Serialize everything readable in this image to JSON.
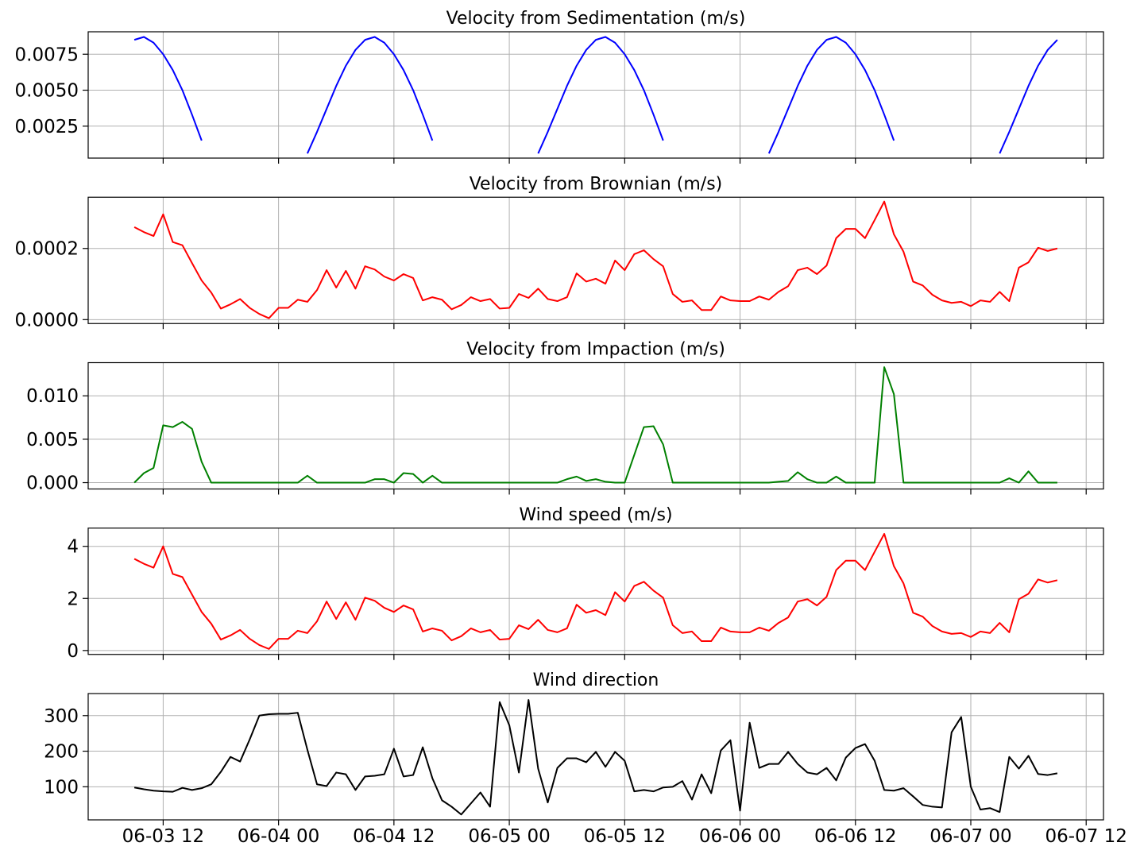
{
  "chart_data": [
    {
      "type": "line",
      "title": "Velocity from Sedimentation (m/s)",
      "color": "#0000ff",
      "grid": true,
      "x": [
        "06-03 09",
        "06-03 10",
        "06-03 11",
        "06-03 12",
        "06-03 13",
        "06-03 14",
        "06-03 15",
        "06-03 16",
        "06-03 17",
        "06-03 18",
        "06-03 19",
        "06-03 20",
        "06-03 21",
        "06-03 22",
        "06-03 23",
        "06-04 00",
        "06-04 01",
        "06-04 02",
        "06-04 03",
        "06-04 04",
        "06-04 05",
        "06-04 06",
        "06-04 07",
        "06-04 08",
        "06-04 09",
        "06-04 10",
        "06-04 11",
        "06-04 12",
        "06-04 13",
        "06-04 14",
        "06-04 15",
        "06-04 16",
        "06-04 17",
        "06-04 18",
        "06-04 19",
        "06-04 20",
        "06-04 21",
        "06-04 22",
        "06-04 23",
        "06-05 00",
        "06-05 01",
        "06-05 02",
        "06-05 03",
        "06-05 04",
        "06-05 05",
        "06-05 06",
        "06-05 07",
        "06-05 08",
        "06-05 09",
        "06-05 10",
        "06-05 11",
        "06-05 12",
        "06-05 13",
        "06-05 14",
        "06-05 15",
        "06-05 16",
        "06-05 17",
        "06-05 18",
        "06-05 19",
        "06-05 20",
        "06-05 21",
        "06-05 22",
        "06-05 23",
        "06-06 00",
        "06-06 01",
        "06-06 02",
        "06-06 03",
        "06-06 04",
        "06-06 05",
        "06-06 06",
        "06-06 07",
        "06-06 08",
        "06-06 09",
        "06-06 10",
        "06-06 11",
        "06-06 12",
        "06-06 13",
        "06-06 14",
        "06-06 15",
        "06-06 16",
        "06-06 17",
        "06-06 18",
        "06-06 19",
        "06-06 20",
        "06-06 21",
        "06-06 22",
        "06-06 23",
        "06-07 00",
        "06-07 01",
        "06-07 02",
        "06-07 03",
        "06-07 04",
        "06-07 05",
        "06-07 06",
        "06-07 07",
        "06-07 08",
        "06-07 09"
      ],
      "values": [
        0.0085,
        0.0087,
        0.0083,
        0.0075,
        0.0064,
        0.005,
        0.0033,
        0.0015,
        null,
        null,
        null,
        null,
        null,
        null,
        null,
        null,
        null,
        null,
        0.0006,
        0.0021,
        0.0037,
        0.0053,
        0.0067,
        0.0078,
        0.0085,
        0.0087,
        0.0083,
        0.0075,
        0.0064,
        0.005,
        0.0033,
        0.0015,
        null,
        null,
        null,
        null,
        null,
        null,
        null,
        null,
        null,
        null,
        0.0006,
        0.0021,
        0.0037,
        0.0053,
        0.0067,
        0.0078,
        0.0085,
        0.0087,
        0.0083,
        0.0075,
        0.0064,
        0.005,
        0.0033,
        0.0015,
        null,
        null,
        null,
        null,
        null,
        null,
        null,
        null,
        null,
        null,
        0.0006,
        0.0021,
        0.0037,
        0.0053,
        0.0067,
        0.0078,
        0.0085,
        0.0087,
        0.0083,
        0.0075,
        0.0064,
        0.005,
        0.0033,
        0.0015,
        null,
        null,
        null,
        null,
        null,
        null,
        null,
        null,
        null,
        null,
        0.0006,
        0.0021,
        0.0037,
        0.0053,
        0.0067,
        0.0078,
        0.0085
      ],
      "xlim": [
        "06-03 04:12",
        "06-07 13:48"
      ],
      "xticks": [
        "06-03 12",
        "06-04 00",
        "06-04 12",
        "06-05 00",
        "06-05 12",
        "06-06 00",
        "06-06 12",
        "06-07 00",
        "06-07 12"
      ],
      "ylim": [
        0.00028,
        0.00906
      ],
      "yticks": [
        0.0025,
        {
          "value": 0.005,
          "label": "0.0050"
        },
        0.0075
      ]
    },
    {
      "type": "line",
      "title": "Velocity from Brownian (m/s)",
      "color": "#ff0000",
      "grid": true,
      "x": [
        "06-03 09",
        "06-03 10",
        "06-03 11",
        "06-03 12",
        "06-03 13",
        "06-03 14",
        "06-03 15",
        "06-03 16",
        "06-03 17",
        "06-03 18",
        "06-03 19",
        "06-03 20",
        "06-03 21",
        "06-03 22",
        "06-03 23",
        "06-04 00",
        "06-04 01",
        "06-04 02",
        "06-04 03",
        "06-04 04",
        "06-04 05",
        "06-04 06",
        "06-04 07",
        "06-04 08",
        "06-04 09",
        "06-04 10",
        "06-04 11",
        "06-04 12",
        "06-04 13",
        "06-04 14",
        "06-04 15",
        "06-04 16",
        "06-04 17",
        "06-04 18",
        "06-04 19",
        "06-04 20",
        "06-04 21",
        "06-04 22",
        "06-04 23",
        "06-05 00",
        "06-05 01",
        "06-05 02",
        "06-05 03",
        "06-05 04",
        "06-05 05",
        "06-05 06",
        "06-05 07",
        "06-05 08",
        "06-05 09",
        "06-05 10",
        "06-05 11",
        "06-05 12",
        "06-05 13",
        "06-05 14",
        "06-05 15",
        "06-05 16",
        "06-05 17",
        "06-05 18",
        "06-05 19",
        "06-05 20",
        "06-05 21",
        "06-05 22",
        "06-05 23",
        "06-06 00",
        "06-06 01",
        "06-06 02",
        "06-06 03",
        "06-06 04",
        "06-06 05",
        "06-06 06",
        "06-06 07",
        "06-06 08",
        "06-06 09",
        "06-06 10",
        "06-06 11",
        "06-06 12",
        "06-06 13",
        "06-06 14",
        "06-06 15",
        "06-06 16",
        "06-06 17",
        "06-06 18",
        "06-06 19",
        "06-06 20",
        "06-06 21",
        "06-06 22",
        "06-06 23",
        "06-07 00",
        "06-07 01",
        "06-07 02",
        "06-07 03",
        "06-07 04",
        "06-07 05",
        "06-07 06",
        "06-07 07",
        "06-07 08",
        "06-07 09"
      ],
      "values": [
        0.00026,
        0.000246,
        0.000235,
        0.000296,
        0.000218,
        0.000209,
        0.000159,
        0.00011,
        7.6e-05,
        3.1e-05,
        4.3e-05,
        5.8e-05,
        3.3e-05,
        1.6e-05,
        4e-06,
        3.3e-05,
        3.3e-05,
        5.6e-05,
        5e-05,
        8.3e-05,
        0.000139,
        9e-05,
        0.000137,
        8.7e-05,
        0.00015,
        0.000141,
        0.000121,
        0.00011,
        0.000128,
        0.000117,
        5.4e-05,
        6.3e-05,
        5.6e-05,
        2.9e-05,
        4.1e-05,
        6.3e-05,
        5.2e-05,
        5.8e-05,
        3.1e-05,
        3.3e-05,
        7.2e-05,
        6.1e-05,
        8.7e-05,
        5.8e-05,
        5.2e-05,
        6.3e-05,
        0.00013,
        0.000107,
        0.000115,
        0.000101,
        0.000166,
        0.000139,
        0.000184,
        0.000195,
        0.00017,
        0.00015,
        7.2e-05,
        5e-05,
        5.4e-05,
        2.7e-05,
        2.7e-05,
        6.5e-05,
        5.4e-05,
        5.2e-05,
        5.2e-05,
        6.5e-05,
        5.6e-05,
        7.8e-05,
        9.4e-05,
        0.000139,
        0.000146,
        0.000128,
        0.000152,
        0.000229,
        0.000255,
        0.000255,
        0.000229,
        0.00028,
        0.000332,
        0.00024,
        0.000191,
        0.000107,
        9.6e-05,
        7e-05,
        5.4e-05,
        4.7e-05,
        5e-05,
        3.8e-05,
        5.4e-05,
        5e-05,
        7.8e-05,
        5.2e-05,
        0.000146,
        0.000161,
        0.000202,
        0.000193,
        0.0002
      ],
      "xlim": [
        "06-03 04:12",
        "06-07 13:48"
      ],
      "xticks": [
        "06-03 12",
        "06-04 00",
        "06-04 12",
        "06-05 00",
        "06-05 12",
        "06-06 00",
        "06-06 12",
        "06-07 00",
        "06-07 12"
      ],
      "ylim": [
        -1.1e-05,
        0.000344
      ],
      "yticks": [
        {
          "value": 0,
          "label": "0.0000"
        },
        0.0002
      ]
    },
    {
      "type": "line",
      "title": "Velocity from Impaction (m/s)",
      "color": "#008000",
      "grid": true,
      "x": [
        "06-03 09",
        "06-03 10",
        "06-03 11",
        "06-03 12",
        "06-03 13",
        "06-03 14",
        "06-03 15",
        "06-03 16",
        "06-03 17",
        "06-03 18",
        "06-03 19",
        "06-03 20",
        "06-03 21",
        "06-03 22",
        "06-03 23",
        "06-04 00",
        "06-04 01",
        "06-04 02",
        "06-04 03",
        "06-04 04",
        "06-04 05",
        "06-04 06",
        "06-04 07",
        "06-04 08",
        "06-04 09",
        "06-04 10",
        "06-04 11",
        "06-04 12",
        "06-04 13",
        "06-04 14",
        "06-04 15",
        "06-04 16",
        "06-04 17",
        "06-04 18",
        "06-04 19",
        "06-04 20",
        "06-04 21",
        "06-04 22",
        "06-04 23",
        "06-05 00",
        "06-05 01",
        "06-05 02",
        "06-05 03",
        "06-05 04",
        "06-05 05",
        "06-05 06",
        "06-05 07",
        "06-05 08",
        "06-05 09",
        "06-05 10",
        "06-05 11",
        "06-05 12",
        "06-05 13",
        "06-05 14",
        "06-05 15",
        "06-05 16",
        "06-05 17",
        "06-05 18",
        "06-05 19",
        "06-05 20",
        "06-05 21",
        "06-05 22",
        "06-05 23",
        "06-06 00",
        "06-06 01",
        "06-06 02",
        "06-06 03",
        "06-06 04",
        "06-06 05",
        "06-06 06",
        "06-06 07",
        "06-06 08",
        "06-06 09",
        "06-06 10",
        "06-06 11",
        "06-06 12",
        "06-06 13",
        "06-06 14",
        "06-06 15",
        "06-06 16",
        "06-06 17",
        "06-06 18",
        "06-06 19",
        "06-06 20",
        "06-06 21",
        "06-06 22",
        "06-06 23",
        "06-07 00",
        "06-07 01",
        "06-07 02",
        "06-07 03",
        "06-07 04",
        "06-07 05",
        "06-07 06",
        "06-07 07",
        "06-07 08",
        "06-07 09"
      ],
      "values": [
        0,
        0.0011,
        0.0017,
        0.0066,
        0.0064,
        0.007,
        0.0062,
        0.0024,
        0,
        0,
        0,
        0,
        0,
        0,
        0,
        0,
        0,
        0,
        0.0008,
        0,
        0,
        0,
        0,
        0,
        0,
        0.0004,
        0.0004,
        0,
        0.0011,
        0.001,
        0,
        0.0008,
        0,
        0,
        0,
        0,
        0,
        0,
        0,
        0,
        0,
        0,
        0,
        0,
        0,
        0.0004,
        0.0007,
        0.0002,
        0.0004,
        0.0001,
        0,
        0,
        0.0032,
        0.0064,
        0.0065,
        0.0044,
        0,
        0,
        0,
        0,
        0,
        0,
        0,
        0,
        0,
        0,
        0,
        0.0001,
        0.0002,
        0.0012,
        0.0004,
        0,
        0,
        0.0007,
        0,
        0,
        0,
        0,
        0.0133,
        0.0102,
        0,
        0,
        0,
        0,
        0,
        0,
        0,
        0,
        0,
        0,
        0,
        0.0005,
        0,
        0.0013,
        0,
        0,
        0
      ],
      "xlim": [
        "06-03 04:12",
        "06-07 13:48"
      ],
      "xticks": [
        "06-03 12",
        "06-04 00",
        "06-04 12",
        "06-05 00",
        "06-05 12",
        "06-06 00",
        "06-06 12",
        "06-07 00",
        "06-07 12"
      ],
      "ylim": [
        -0.00073,
        0.01382
      ],
      "yticks": [
        {
          "value": 0,
          "label": "0.000"
        },
        {
          "value": 0.005,
          "label": "0.005"
        },
        {
          "value": 0.01,
          "label": "0.010"
        }
      ]
    },
    {
      "type": "line",
      "title": "Wind speed (m/s)",
      "color": "#ff0000",
      "grid": true,
      "x": [
        "06-03 09",
        "06-03 10",
        "06-03 11",
        "06-03 12",
        "06-03 13",
        "06-03 14",
        "06-03 15",
        "06-03 16",
        "06-03 17",
        "06-03 18",
        "06-03 19",
        "06-03 20",
        "06-03 21",
        "06-03 22",
        "06-03 23",
        "06-04 00",
        "06-04 01",
        "06-04 02",
        "06-04 03",
        "06-04 04",
        "06-04 05",
        "06-04 06",
        "06-04 07",
        "06-04 08",
        "06-04 09",
        "06-04 10",
        "06-04 11",
        "06-04 12",
        "06-04 13",
        "06-04 14",
        "06-04 15",
        "06-04 16",
        "06-04 17",
        "06-04 18",
        "06-04 19",
        "06-04 20",
        "06-04 21",
        "06-04 22",
        "06-04 23",
        "06-05 00",
        "06-05 01",
        "06-05 02",
        "06-05 03",
        "06-05 04",
        "06-05 05",
        "06-05 06",
        "06-05 07",
        "06-05 08",
        "06-05 09",
        "06-05 10",
        "06-05 11",
        "06-05 12",
        "06-05 13",
        "06-05 14",
        "06-05 15",
        "06-05 16",
        "06-05 17",
        "06-05 18",
        "06-05 19",
        "06-05 20",
        "06-05 21",
        "06-05 22",
        "06-05 23",
        "06-06 00",
        "06-06 01",
        "06-06 02",
        "06-06 03",
        "06-06 04",
        "06-06 05",
        "06-06 06",
        "06-06 07",
        "06-06 08",
        "06-06 09",
        "06-06 10",
        "06-06 11",
        "06-06 12",
        "06-06 13",
        "06-06 14",
        "06-06 15",
        "06-06 16",
        "06-06 17",
        "06-06 18",
        "06-06 19",
        "06-06 20",
        "06-06 21",
        "06-06 22",
        "06-06 23",
        "06-07 00",
        "06-07 01",
        "06-07 02",
        "06-07 03",
        "06-07 04",
        "06-07 05",
        "06-07 06",
        "06-07 07",
        "06-07 08",
        "06-07 09"
      ],
      "values": [
        3.52,
        3.33,
        3.18,
        4.0,
        2.94,
        2.82,
        2.15,
        1.48,
        1.03,
        0.42,
        0.58,
        0.79,
        0.45,
        0.21,
        0.06,
        0.45,
        0.45,
        0.76,
        0.67,
        1.12,
        1.88,
        1.21,
        1.85,
        1.18,
        2.03,
        1.91,
        1.64,
        1.48,
        1.73,
        1.58,
        0.73,
        0.85,
        0.76,
        0.39,
        0.55,
        0.85,
        0.7,
        0.79,
        0.42,
        0.45,
        0.97,
        0.82,
        1.18,
        0.79,
        0.7,
        0.85,
        1.76,
        1.45,
        1.55,
        1.36,
        2.24,
        1.88,
        2.48,
        2.64,
        2.3,
        2.03,
        0.97,
        0.67,
        0.73,
        0.36,
        0.36,
        0.88,
        0.73,
        0.7,
        0.7,
        0.88,
        0.76,
        1.06,
        1.27,
        1.88,
        1.97,
        1.73,
        2.06,
        3.09,
        3.45,
        3.45,
        3.09,
        3.79,
        4.48,
        3.24,
        2.58,
        1.45,
        1.3,
        0.94,
        0.73,
        0.64,
        0.67,
        0.52,
        0.73,
        0.67,
        1.06,
        0.7,
        1.97,
        2.18,
        2.73,
        2.61,
        2.7
      ],
      "xlim": [
        "06-03 04:12",
        "06-07 13:48"
      ],
      "xticks": [
        "06-03 12",
        "06-04 00",
        "06-04 12",
        "06-05 00",
        "06-05 12",
        "06-06 00",
        "06-06 12",
        "06-07 00",
        "06-07 12"
      ],
      "ylim": [
        -0.15,
        4.7
      ],
      "yticks": [
        0,
        2,
        4
      ]
    },
    {
      "type": "line",
      "title": "Wind direction",
      "color": "#000000",
      "grid": true,
      "x": [
        "06-03 09",
        "06-03 10",
        "06-03 11",
        "06-03 12",
        "06-03 13",
        "06-03 14",
        "06-03 15",
        "06-03 16",
        "06-03 17",
        "06-03 18",
        "06-03 19",
        "06-03 20",
        "06-03 21",
        "06-03 22",
        "06-03 23",
        "06-04 00",
        "06-04 01",
        "06-04 02",
        "06-04 03",
        "06-04 04",
        "06-04 05",
        "06-04 06",
        "06-04 07",
        "06-04 08",
        "06-04 09",
        "06-04 10",
        "06-04 11",
        "06-04 12",
        "06-04 13",
        "06-04 14",
        "06-04 15",
        "06-04 16",
        "06-04 17",
        "06-04 18",
        "06-04 19",
        "06-04 20",
        "06-04 21",
        "06-04 22",
        "06-04 23",
        "06-05 00",
        "06-05 01",
        "06-05 02",
        "06-05 03",
        "06-05 04",
        "06-05 05",
        "06-05 06",
        "06-05 07",
        "06-05 08",
        "06-05 09",
        "06-05 10",
        "06-05 11",
        "06-05 12",
        "06-05 13",
        "06-05 14",
        "06-05 15",
        "06-05 16",
        "06-05 17",
        "06-05 18",
        "06-05 19",
        "06-05 20",
        "06-05 21",
        "06-05 22",
        "06-05 23",
        "06-06 00",
        "06-06 01",
        "06-06 02",
        "06-06 03",
        "06-06 04",
        "06-06 05",
        "06-06 06",
        "06-06 07",
        "06-06 08",
        "06-06 09",
        "06-06 10",
        "06-06 11",
        "06-06 12",
        "06-06 13",
        "06-06 14",
        "06-06 15",
        "06-06 16",
        "06-06 17",
        "06-06 18",
        "06-06 19",
        "06-06 20",
        "06-06 21",
        "06-06 22",
        "06-06 23",
        "06-07 00",
        "06-07 01",
        "06-07 02",
        "06-07 03",
        "06-07 04",
        "06-07 05",
        "06-07 06",
        "06-07 07",
        "06-07 08",
        "06-07 09"
      ],
      "values": [
        98,
        93,
        89,
        87,
        86,
        97,
        91,
        96,
        107,
        142,
        184,
        171,
        233,
        300,
        304,
        305,
        305,
        308,
        204,
        107,
        102,
        140,
        135,
        91,
        129,
        131,
        135,
        207,
        129,
        133,
        211,
        124,
        62,
        44,
        22,
        53,
        84,
        44,
        338,
        273,
        140,
        344,
        151,
        56,
        153,
        180,
        180,
        169,
        198,
        156,
        198,
        173,
        87,
        91,
        87,
        98,
        100,
        116,
        64,
        135,
        82,
        202,
        231,
        33,
        280,
        153,
        164,
        164,
        198,
        164,
        140,
        135,
        153,
        118,
        182,
        209,
        220,
        173,
        91,
        89,
        96,
        73,
        49,
        44,
        42,
        253,
        296,
        100,
        36,
        40,
        29,
        184,
        151,
        187,
        136,
        133,
        138
      ],
      "xlim": [
        "06-03 04:12",
        "06-07 13:48"
      ],
      "xticks": [
        "06-03 12",
        "06-04 00",
        "06-04 12",
        "06-05 00",
        "06-05 12",
        "06-06 00",
        "06-06 12",
        "06-07 00",
        "06-07 12"
      ],
      "ylim": [
        7,
        362
      ],
      "yticks": [
        100,
        200,
        300
      ]
    }
  ]
}
